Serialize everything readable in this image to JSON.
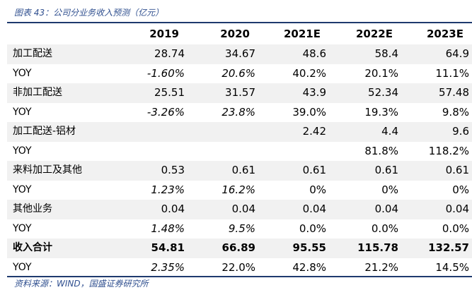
{
  "caption": "图表 43：公司分业务收入预测（亿元）",
  "headers": [
    "",
    "2019",
    "2020",
    "2021E",
    "2022E",
    "2023E"
  ],
  "rows": [
    {
      "cells": [
        "加工配送",
        "28.74",
        "34.67",
        "48.6",
        "58.4",
        "64.9"
      ]
    },
    {
      "cells": [
        "YOY",
        "-1.60%",
        "20.6%",
        "40.2%",
        "20.1%",
        "11.1%"
      ]
    },
    {
      "cells": [
        "非加工配送",
        "25.51",
        "31.57",
        "43.9",
        "52.34",
        "57.48"
      ]
    },
    {
      "cells": [
        "YOY",
        "-3.26%",
        "23.8%",
        "39.0%",
        "19.3%",
        "9.8%"
      ]
    },
    {
      "cells": [
        "加工配送-铝材",
        "",
        "",
        "2.42",
        "4.4",
        "9.6"
      ]
    },
    {
      "cells": [
        "YOY",
        "",
        "",
        "",
        "81.8%",
        "118.2%"
      ]
    },
    {
      "cells": [
        "来料加工及其他",
        "0.53",
        "0.61",
        "0.61",
        "0.61",
        "0.61"
      ]
    },
    {
      "cells": [
        "YOY",
        "1.23%",
        "16.2%",
        "0%",
        "0%",
        "0%"
      ]
    },
    {
      "cells": [
        "其他业务",
        "0.04",
        "0.04",
        "0.04",
        "0.04",
        "0.04"
      ]
    },
    {
      "cells": [
        "YOY",
        "1.48%",
        "9.5%",
        "0.0%",
        "0.0%",
        "0.0%"
      ]
    },
    {
      "cells": [
        "收入合计",
        "54.81",
        "66.89",
        "95.55",
        "115.78",
        "132.57"
      ]
    },
    {
      "cells": [
        "YOY",
        "2.35%",
        "22.0%",
        "42.8%",
        "21.2%",
        "14.5%"
      ]
    }
  ],
  "source": "资料来源：WIND，国盛证券研究所",
  "colors": {
    "accent": "#1e3a6e",
    "caption": "#2f4f8f",
    "shade": "#f1f1f1"
  }
}
